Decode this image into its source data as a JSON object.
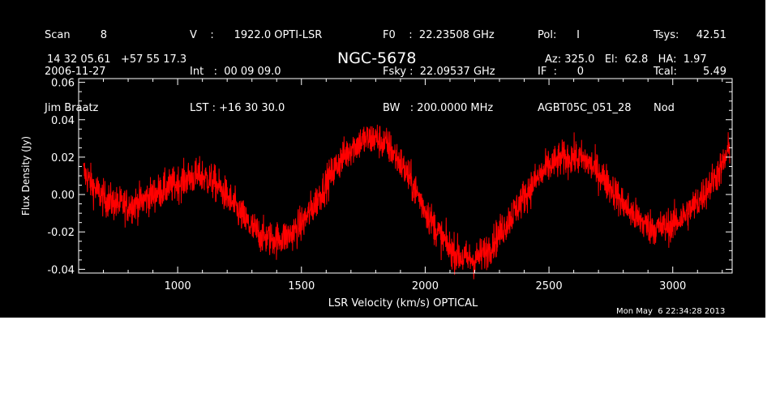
{
  "header": {
    "col1": [
      "Scan         8",
      "2006-11-27",
      "Jim Braatz"
    ],
    "col2": [
      "V    :      1922.0 OPTI-LSR",
      "Int   :  00 09 09.0",
      "LST : +16 30 30.0"
    ],
    "col3": [
      "F0    :  22.23508 GHz",
      "Fsky :  22.09537 GHz",
      "BW   : 200.0000 MHz"
    ],
    "col4": [
      "Pol:      I",
      "IF  :      0",
      "AGBT05C_051_28"
    ],
    "col5_labels": [
      "Tsys:",
      "Tcal:",
      "Nod"
    ],
    "col5_values": [
      "42.51",
      "5.49",
      ""
    ],
    "coords": "14 32 05.61   +57 55 17.3",
    "object": "NGC-5678",
    "azel": "Az: 325.0   El:  62.8   HA:  1.97",
    "timestamp": "Mon May  6 22:34:28 2013"
  },
  "colors": {
    "background": "#000000",
    "axes": "#ffffff",
    "series": "#ff0000",
    "page": "#ffffff"
  },
  "chart_data": {
    "type": "line",
    "title": "NGC-5678",
    "xlabel": "LSR Velocity (km/s) OPTICAL",
    "ylabel": "Flux Density (Jy)",
    "xlim": [
      600,
      3240
    ],
    "ylim": [
      -0.042,
      0.062
    ],
    "xticks": [
      1000,
      1500,
      2000,
      2500,
      3000
    ],
    "xtick_labels": [
      "1000",
      "1500",
      "2000",
      "2500",
      "3000"
    ],
    "yticks": [
      -0.04,
      -0.02,
      0.0,
      0.02,
      0.04,
      0.06
    ],
    "ytick_labels": [
      "-0.04",
      "-0.02",
      "0.00",
      "0.02",
      "0.04",
      "0.06"
    ],
    "grid": false,
    "series": [
      {
        "name": "",
        "color": "#ff0000",
        "x": [
          620,
          660,
          700,
          750,
          800,
          850,
          900,
          950,
          1000,
          1050,
          1100,
          1150,
          1200,
          1250,
          1300,
          1350,
          1400,
          1450,
          1500,
          1550,
          1600,
          1650,
          1700,
          1750,
          1800,
          1850,
          1900,
          1950,
          2000,
          2050,
          2100,
          2150,
          2200,
          2250,
          2300,
          2350,
          2400,
          2450,
          2500,
          2550,
          2600,
          2650,
          2700,
          2750,
          2800,
          2850,
          2900,
          2950,
          3000,
          3050,
          3100,
          3150,
          3200,
          3230
        ],
        "y": [
          0.012,
          0.004,
          -0.002,
          -0.005,
          -0.006,
          -0.004,
          0.0,
          0.003,
          0.006,
          0.009,
          0.01,
          0.006,
          -0.001,
          -0.01,
          -0.018,
          -0.023,
          -0.024,
          -0.022,
          -0.016,
          -0.006,
          0.006,
          0.017,
          0.025,
          0.029,
          0.03,
          0.026,
          0.017,
          0.005,
          -0.008,
          -0.02,
          -0.029,
          -0.034,
          -0.035,
          -0.03,
          -0.021,
          -0.011,
          -0.001,
          0.008,
          0.015,
          0.019,
          0.02,
          0.018,
          0.012,
          0.004,
          -0.005,
          -0.012,
          -0.017,
          -0.018,
          -0.016,
          -0.011,
          -0.004,
          0.005,
          0.015,
          0.025
        ]
      }
    ]
  }
}
